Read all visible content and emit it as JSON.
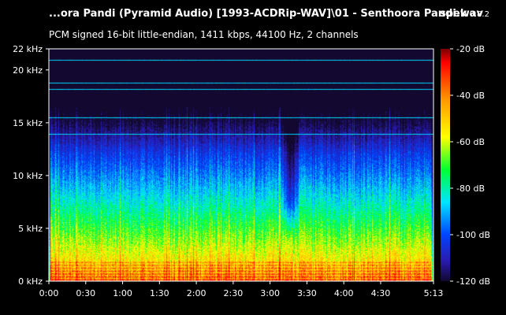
{
  "header": {
    "file_title": "...ora Pandi (Pyramid Audio) [1993-ACDRip-WAV]\\01 - Senthoora Pandi.wav",
    "app_name": "spek",
    "app_version": "0.8.2",
    "stream_info": "PCM signed 16-bit little-endian, 1411 kbps, 44100 Hz, 2 channels"
  },
  "spectrogram": {
    "freq_axis_labels": [
      "22 kHz",
      "20 kHz",
      "15 kHz",
      "10 kHz",
      "5 kHz",
      "0 kHz"
    ],
    "time_axis_labels": [
      "0:00",
      "0:30",
      "1:00",
      "1:30",
      "2:00",
      "2:30",
      "3:00",
      "3:30",
      "4:00",
      "4:30",
      "5:13"
    ],
    "db_scale_labels": [
      "-20 dB",
      "-40 dB",
      "-60 dB",
      "-80 dB",
      "-100 dB",
      "-120 dB"
    ],
    "freq_range_khz": [
      0,
      22
    ],
    "time_range_s": [
      0,
      313
    ],
    "db_range": [
      -120,
      -20
    ],
    "colors": {
      "background": "#000000",
      "text": "#ffffff",
      "scale_stops": [
        "#7a0000",
        "#ff0000",
        "#ff9900",
        "#ffff00",
        "#00ff33",
        "#00e5ff",
        "#0044ff",
        "#2a1bb0",
        "#120830"
      ]
    }
  }
}
